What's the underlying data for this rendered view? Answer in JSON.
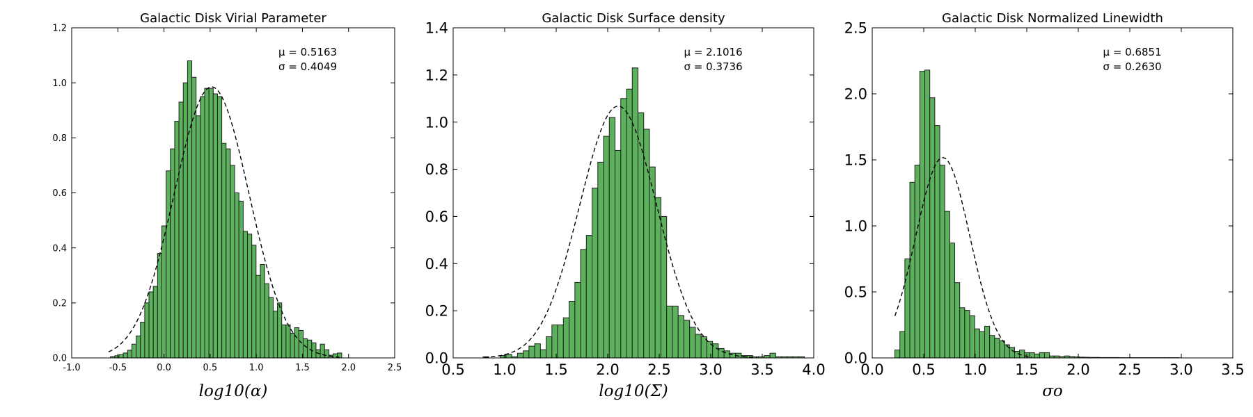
{
  "chart_data": [
    {
      "type": "bar",
      "title": "Galactic Disk Virial Parameter",
      "xlabel": "log10(α)",
      "ylabel": "",
      "xlim": [
        -1.0,
        2.5
      ],
      "ylim": [
        0,
        1.2
      ],
      "xticks": [
        "-1.0",
        "-0.5",
        "0.0",
        "0.5",
        "1.0",
        "1.5",
        "2.0",
        "2.5"
      ],
      "yticks": [
        "0.0",
        "0.2",
        "0.4",
        "0.6",
        "0.8",
        "1.0",
        "1.2"
      ],
      "annotation": {
        "mu": "μ = 0.5163",
        "sigma": "σ = 0.4049"
      },
      "fit": {
        "type": "gaussian",
        "mu": 0.5163,
        "sigma": 0.4049,
        "x_range": [
          -0.6,
          1.9
        ]
      },
      "grid": false,
      "bar_color": "#5cb15c",
      "bins": {
        "start": -0.58,
        "width": 0.0464,
        "values": [
          0.005,
          0.008,
          0.012,
          0.018,
          0.028,
          0.05,
          0.08,
          0.13,
          0.2,
          0.24,
          0.26,
          0.38,
          0.48,
          0.68,
          0.76,
          0.86,
          0.93,
          1.0,
          1.08,
          1.02,
          0.88,
          0.95,
          0.98,
          0.98,
          0.96,
          0.95,
          0.78,
          0.76,
          0.7,
          0.6,
          0.57,
          0.46,
          0.45,
          0.41,
          0.3,
          0.34,
          0.27,
          0.22,
          0.17,
          0.2,
          0.12,
          0.12,
          0.09,
          0.11,
          0.1,
          0.07,
          0.065,
          0.055,
          0.03,
          0.05,
          0.03,
          0.01,
          0.015,
          0.018
        ]
      }
    },
    {
      "type": "bar",
      "title": "Galactic Disk Surface density",
      "xlabel": "log10(Σ)",
      "ylabel": "",
      "xlim": [
        0.5,
        4.0
      ],
      "ylim": [
        0,
        1.4
      ],
      "xticks": [
        "0.5",
        "1.0",
        "1.5",
        "2.0",
        "2.5",
        "3.0",
        "3.5",
        "4.0"
      ],
      "yticks": [
        "0.0",
        "0.2",
        "0.4",
        "0.6",
        "0.8",
        "1.0",
        "1.2",
        "1.4"
      ],
      "annotation": {
        "mu": "μ = 2.1016",
        "sigma": "σ = 0.3736"
      },
      "fit": {
        "type": "gaussian",
        "mu": 2.1016,
        "sigma": 0.3736,
        "x_range": [
          0.8,
          3.45
        ]
      },
      "grid": false,
      "bar_color": "#5cb15c",
      "bins": {
        "start": 0.79,
        "width": 0.0557,
        "values": [
          0.005,
          0.0,
          0.0,
          0.01,
          0.015,
          0.005,
          0.02,
          0.03,
          0.05,
          0.06,
          0.035,
          0.09,
          0.14,
          0.14,
          0.17,
          0.24,
          0.32,
          0.46,
          0.52,
          0.72,
          0.83,
          0.94,
          1.02,
          0.88,
          1.1,
          1.14,
          1.23,
          1.04,
          0.97,
          0.81,
          0.68,
          0.6,
          0.22,
          0.22,
          0.18,
          0.16,
          0.13,
          0.1,
          0.09,
          0.07,
          0.06,
          0.04,
          0.03,
          0.02,
          0.02,
          0.01,
          0.01,
          0.005,
          0.005,
          0.01,
          0.02,
          0.005,
          0.005,
          0.005,
          0.005,
          0.005
        ]
      }
    },
    {
      "type": "bar",
      "title": "Galactic Disk Normalized Linewidth",
      "xlabel": "σo",
      "ylabel": "",
      "xlim": [
        0.0,
        3.5
      ],
      "ylim": [
        0,
        2.5
      ],
      "xticks": [
        "0.0",
        "0.5",
        "1.0",
        "1.5",
        "2.0",
        "2.5",
        "3.0",
        "3.5"
      ],
      "yticks": [
        "0.0",
        "0.5",
        "1.0",
        "1.5",
        "2.0",
        "2.5"
      ],
      "annotation": {
        "mu": "μ = 0.6851",
        "sigma": "σ = 0.2630"
      },
      "fit": {
        "type": "gaussian",
        "mu": 0.6851,
        "sigma": 0.263,
        "x_range": [
          0.22,
          1.55
        ]
      },
      "grid": false,
      "bar_color": "#5cb15c",
      "bins": {
        "start": 0.22,
        "width": 0.0484,
        "values": [
          0.06,
          0.2,
          0.75,
          1.33,
          1.46,
          2.17,
          2.18,
          1.97,
          1.76,
          1.46,
          1.11,
          0.87,
          0.57,
          0.38,
          0.36,
          0.32,
          0.22,
          0.2,
          0.24,
          0.17,
          0.15,
          0.13,
          0.1,
          0.08,
          0.05,
          0.06,
          0.04,
          0.04,
          0.03,
          0.04,
          0.04,
          0.015,
          0.015,
          0.01,
          0.015,
          0.01,
          0.008,
          0.006,
          0.005,
          0.004,
          0.004,
          0.003,
          0.003,
          0.003,
          0.003,
          0.002,
          0.002,
          0.002,
          0.002,
          0.002,
          0.002,
          0.002,
          0.002,
          0.002,
          0.002,
          0.002,
          0.002
        ]
      }
    }
  ]
}
